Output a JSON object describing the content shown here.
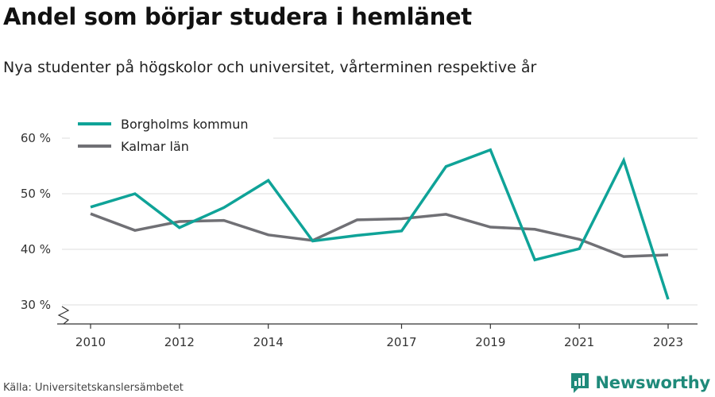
{
  "header": {
    "title": "Andel som börjar studera i hemlänet",
    "subtitle": "Nya studenter på högskolor och universitet, vårterminen respektive år"
  },
  "footer": {
    "source": "Källa: Universitetskanslersämbetet",
    "brand": "Newsworthy",
    "brand_color": "#1f8a7a"
  },
  "chart_data": {
    "type": "line",
    "x": [
      2010,
      2011,
      2012,
      2013,
      2014,
      2015,
      2016,
      2017,
      2018,
      2019,
      2020,
      2021,
      2022,
      2023
    ],
    "x_ticks": [
      2010,
      2012,
      2014,
      2017,
      2019,
      2021,
      2023
    ],
    "y_ticks": [
      30,
      40,
      50,
      60
    ],
    "y_tick_labels": [
      "30 %",
      "40 %",
      "50 %",
      "60 %"
    ],
    "ylim": [
      28.3,
      62
    ],
    "xlim": [
      2009.25,
      2023.65
    ],
    "xlabel": "",
    "ylabel": "",
    "grid": true,
    "y_axis_break": true,
    "legend_position": "top-left",
    "series": [
      {
        "name": "Borgholms kommun",
        "color": "#0fa398",
        "values": [
          47.6,
          50.0,
          43.9,
          47.5,
          52.4,
          41.5,
          42.5,
          43.3,
          54.9,
          57.9,
          38.1,
          40.1,
          56.0,
          31.0
        ]
      },
      {
        "name": "Kalmar län",
        "color": "#707075",
        "values": [
          46.4,
          43.4,
          45.0,
          45.2,
          42.6,
          41.6,
          45.3,
          45.5,
          46.3,
          44.0,
          43.6,
          41.8,
          38.7,
          39.0
        ]
      }
    ]
  }
}
